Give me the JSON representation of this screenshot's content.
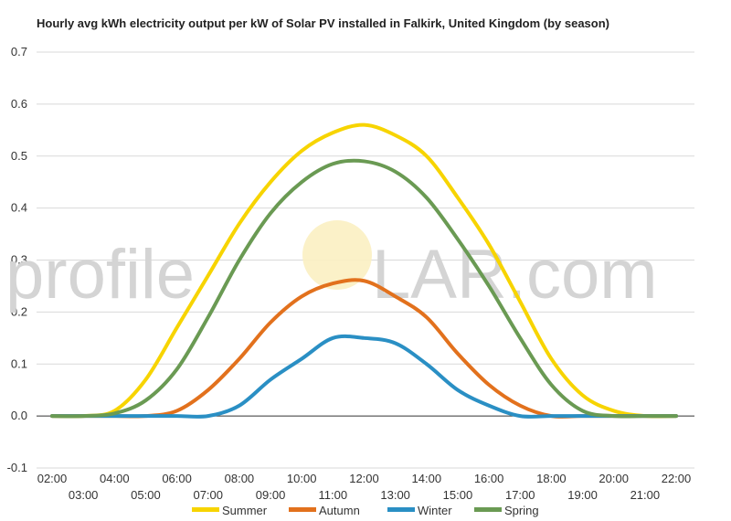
{
  "title": "Hourly avg kWh electricity output per kW of Solar PV installed in Falkirk, United Kingdom (by season)",
  "watermark": {
    "text": "profileSOLAR.com",
    "left": "profile",
    "right": "LAR.com"
  },
  "chart_data": {
    "type": "line",
    "title": "Hourly avg kWh electricity output per kW of Solar PV installed in Falkirk, United Kingdom (by season)",
    "xlabel": "",
    "ylabel": "",
    "ylim": [
      -0.1,
      0.7
    ],
    "yticks": [
      -0.1,
      0.0,
      0.1,
      0.2,
      0.3,
      0.4,
      0.5,
      0.6,
      0.7
    ],
    "ytick_labels": [
      "-0.1",
      "0.0",
      "0.1",
      "0.2",
      "0.3",
      "0.4",
      "0.5",
      "0.6",
      "0.7"
    ],
    "x": [
      "02:00",
      "03:00",
      "04:00",
      "05:00",
      "06:00",
      "07:00",
      "08:00",
      "09:00",
      "10:00",
      "11:00",
      "12:00",
      "13:00",
      "14:00",
      "15:00",
      "16:00",
      "17:00",
      "18:00",
      "19:00",
      "20:00",
      "21:00",
      "22:00"
    ],
    "grid": true,
    "legend_position": "bottom",
    "series": [
      {
        "name": "Summer",
        "color": "#f7d400",
        "values": [
          0.0,
          0.0,
          0.01,
          0.07,
          0.17,
          0.27,
          0.37,
          0.45,
          0.51,
          0.545,
          0.56,
          0.54,
          0.5,
          0.42,
          0.33,
          0.22,
          0.11,
          0.04,
          0.01,
          0.0,
          0.0
        ]
      },
      {
        "name": "Autumn",
        "color": "#e2711d",
        "values": [
          0.0,
          0.0,
          0.0,
          0.0,
          0.01,
          0.05,
          0.11,
          0.18,
          0.23,
          0.255,
          0.26,
          0.23,
          0.19,
          0.12,
          0.06,
          0.02,
          0.0,
          0.0,
          0.0,
          0.0,
          0.0
        ]
      },
      {
        "name": "Winter",
        "color": "#2a8fc4",
        "values": [
          0.0,
          0.0,
          0.0,
          0.0,
          0.0,
          0.0,
          0.02,
          0.07,
          0.11,
          0.15,
          0.15,
          0.14,
          0.1,
          0.05,
          0.02,
          0.0,
          0.0,
          0.0,
          0.0,
          0.0,
          0.0
        ]
      },
      {
        "name": "Spring",
        "color": "#6a9a53",
        "values": [
          0.0,
          0.0,
          0.005,
          0.03,
          0.09,
          0.19,
          0.3,
          0.39,
          0.45,
          0.485,
          0.49,
          0.47,
          0.42,
          0.34,
          0.25,
          0.15,
          0.06,
          0.01,
          0.0,
          0.0,
          0.0
        ]
      }
    ]
  }
}
